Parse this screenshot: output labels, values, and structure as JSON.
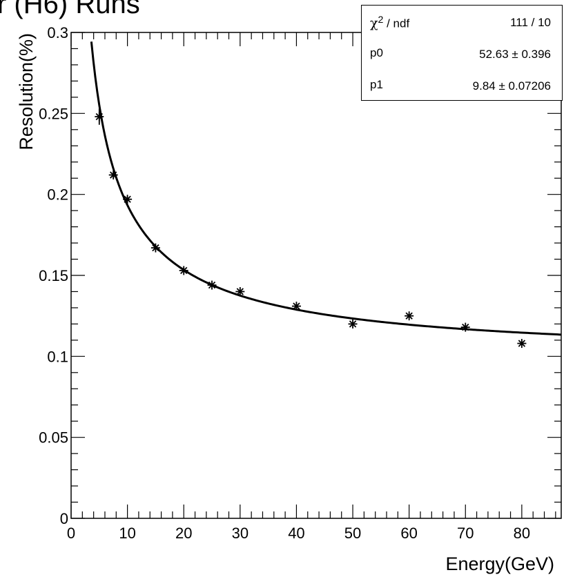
{
  "title": "r (H6) Runs",
  "stats": {
    "rows": [
      {
        "key_symbol": "χ",
        "key_sup": "2",
        "key_rest": " / ndf",
        "value": "111 / 10"
      },
      {
        "key": "p0",
        "value": "52.63 ± 0.396"
      },
      {
        "key": "p1",
        "value": "9.84 ± 0.07206"
      }
    ]
  },
  "chart_data": {
    "type": "scatter",
    "xlabel": "Energy(GeV)",
    "ylabel": "Resolution(%)",
    "xlim": [
      0,
      87
    ],
    "ylim": [
      0,
      0.3
    ],
    "x_ticks": [
      0,
      10,
      20,
      30,
      40,
      50,
      60,
      70,
      80
    ],
    "x_tick_labels": [
      "0",
      "10",
      "20",
      "30",
      "40",
      "50",
      "60",
      "70",
      "80"
    ],
    "y_ticks": [
      0,
      0.05,
      0.1,
      0.15,
      0.2,
      0.25,
      0.3
    ],
    "y_tick_labels": [
      "0",
      "0.05",
      "0.1",
      "0.15",
      "0.2",
      "0.25",
      "0.3"
    ],
    "grid": false,
    "legend": "none",
    "series": [
      {
        "marker": "asterisk",
        "x": [
          5,
          7.5,
          10,
          15,
          20,
          25,
          30,
          40,
          50,
          60,
          70,
          80
        ],
        "y": [
          0.248,
          0.212,
          0.197,
          0.167,
          0.153,
          0.144,
          0.14,
          0.131,
          0.12,
          0.125,
          0.118,
          0.108
        ],
        "y_err": [
          0.005,
          0.002,
          0.002,
          0.001,
          0.001,
          0.001,
          0.001,
          0.001,
          0.001,
          0.001,
          0.001,
          0.001
        ]
      }
    ],
    "fit": {
      "p0": 52.63,
      "p1": 9.84,
      "x_range": [
        3.6,
        87
      ]
    }
  }
}
